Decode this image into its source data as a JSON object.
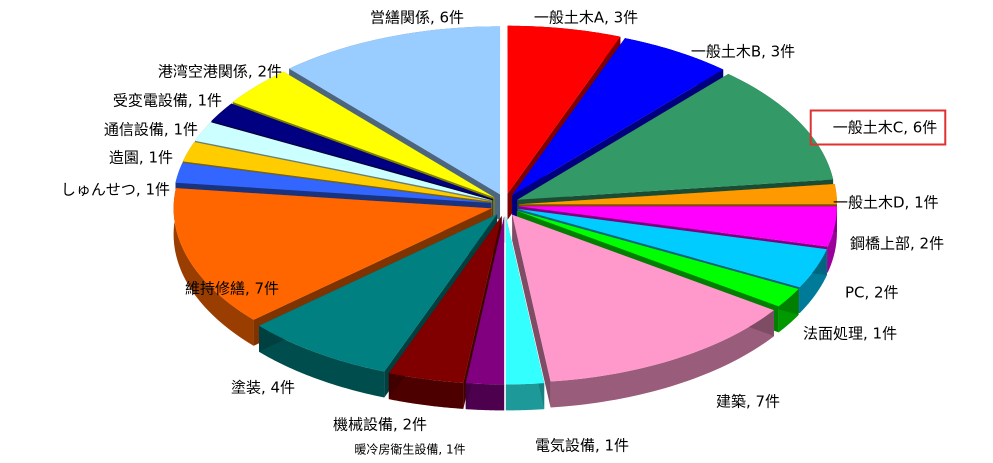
{
  "chart_data": {
    "type": "pie3d",
    "values": [
      3,
      3,
      6,
      1,
      2,
      2,
      1,
      7,
      1,
      1,
      2,
      4,
      7,
      1,
      1,
      1,
      1,
      2,
      6
    ],
    "value_labels": [
      "一般土木A, 3件",
      "一般土木B, 3件",
      "一般土木C, 6件",
      "一般土木D, 1件",
      "鋼橋上部, 2件",
      "PC, 2件",
      "法面処理, 1件",
      "建築, 7件",
      "電気設備, 1件",
      "暖冷房衛生設備, 1件",
      "機械設備, 2件",
      "塗装, 4件",
      "維持修繕, 7件",
      "しゅんせつ, 1件",
      "造園, 1件",
      "通信設備, 1件",
      "受変電設備, 1件",
      "港湾空港関係, 2件",
      "営繕関係, 6件"
    ],
    "colors": [
      "#ff0000",
      "#0000ff",
      "#339966",
      "#ff9900",
      "#ff00ff",
      "#00ccff",
      "#00ff00",
      "#ff99cc",
      "#33ffff",
      "#800080",
      "#800000",
      "#008080",
      "#ff6600",
      "#3366ff",
      "#ffcc00",
      "#ccffff",
      "#000080",
      "#ffff00",
      "#99ccff"
    ],
    "highlight_index": 2
  }
}
